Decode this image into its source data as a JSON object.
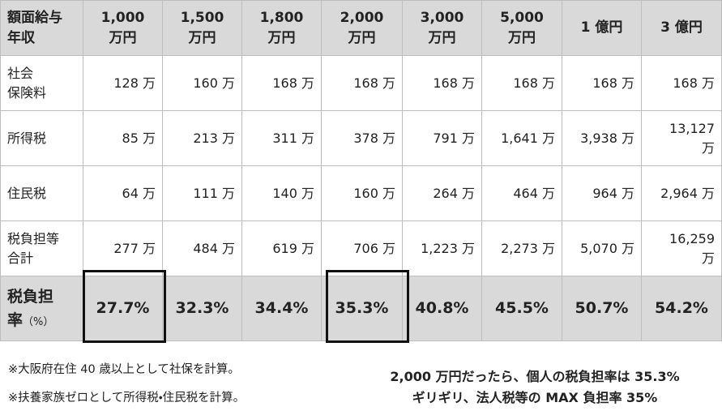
{
  "table": {
    "header": [
      "額面給与\n年収",
      "1,000\n万円",
      "1,500\n万円",
      "1,800\n万円",
      "2,000\n万円",
      "3,000\n万円",
      "5,000\n万円",
      "1 億円",
      "3 億円"
    ],
    "rows": [
      [
        "社会\n保険料",
        "128 万",
        "160 万",
        "168 万",
        "168 万",
        "168 万",
        "168 万",
        "168 万",
        "168 万"
      ],
      [
        "所得税",
        "85 万",
        "213 万",
        "311 万",
        "378 万",
        "791 万",
        "1,641 万",
        "3,938 万",
        "13,127\n万"
      ],
      [
        "住民税",
        "64 万",
        "111 万",
        "140 万",
        "160 万",
        "264 万",
        "464 万",
        "964 万",
        "2,964 万"
      ],
      [
        "税負担等\n合計",
        "277 万",
        "484 万",
        "619 万",
        "706 万",
        "1,223 万",
        "2,273 万",
        "5,070 万",
        "16,259\n万"
      ]
    ],
    "rate_row": {
      "label": "税負担\n率",
      "unit": "（%）",
      "values": [
        "27.7%",
        "32.3%",
        "34.4%",
        "35.3%",
        "40.8%",
        "45.5%",
        "50.7%",
        "54.2%"
      ]
    }
  },
  "notes": [
    "※大阪府在住 40 歳以上として社保を計算。",
    "※扶養家族ゼロとして所得税・住民税を計算。"
  ],
  "conclusion": [
    "2,000 万円だったら、個人の税負担率は 35.3%",
    "ギリギリ、法人税等の MAX 負担率 35%"
  ]
}
